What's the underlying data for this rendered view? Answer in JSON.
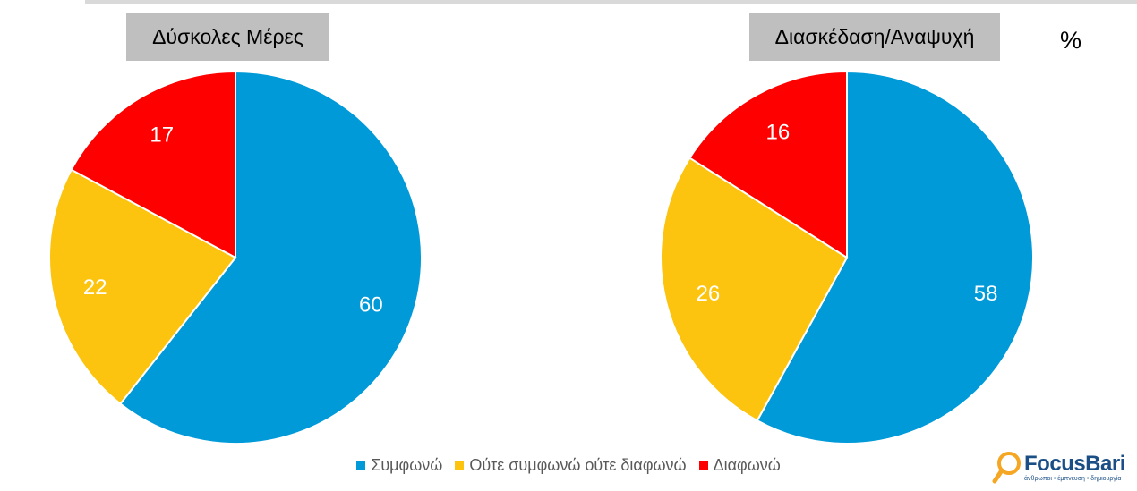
{
  "percent_sign": "%",
  "legend": [
    {
      "label": "Συμφωνώ",
      "color": "#009ad9"
    },
    {
      "label": "Ούτε συμφωνώ ούτε διαφωνώ",
      "color": "#fcc30f"
    },
    {
      "label": "Διαφωνώ",
      "color": "#ff0000"
    }
  ],
  "logo": {
    "name": "FocusBari",
    "tagline": "άνθρωποι • έμπνευση • δημιουργία"
  },
  "chart_data": [
    {
      "type": "pie",
      "title": "Δύσκολες Μέρες",
      "categories": [
        "Συμφωνώ",
        "Ούτε συμφωνώ ούτε διαφωνώ",
        "Διαφωνώ"
      ],
      "values": [
        60,
        22,
        17
      ],
      "colors": [
        "#009ad9",
        "#fcc30f",
        "#ff0000"
      ],
      "legend_position": "bottom"
    },
    {
      "type": "pie",
      "title": "Διασκέδαση/Αναψυχή",
      "categories": [
        "Συμφωνώ",
        "Ούτε συμφωνώ ούτε διαφωνώ",
        "Διαφωνώ"
      ],
      "values": [
        58,
        26,
        16
      ],
      "colors": [
        "#009ad9",
        "#fcc30f",
        "#ff0000"
      ],
      "legend_position": "bottom"
    }
  ]
}
